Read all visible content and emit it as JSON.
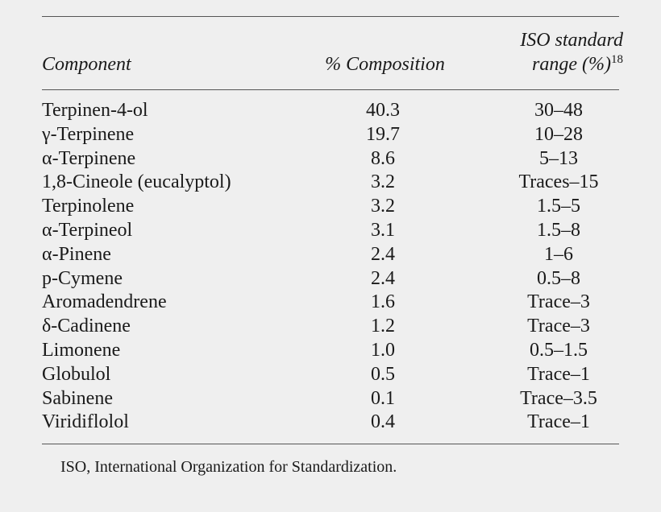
{
  "table": {
    "header": {
      "component": "Component",
      "composition": "% Composition",
      "iso_line1": "ISO standard",
      "iso_line2": "range (%)",
      "iso_ref": "18"
    },
    "rows": [
      [
        "Terpinen-4-ol",
        "40.3",
        "30–48"
      ],
      [
        "γ-Terpinene",
        "19.7",
        "10–28"
      ],
      [
        "α-Terpinene",
        "8.6",
        "5–13"
      ],
      [
        "1,8-Cineole (eucalyptol)",
        "3.2",
        "Traces–15"
      ],
      [
        "Terpinolene",
        "3.2",
        "1.5–5"
      ],
      [
        "α-Terpineol",
        "3.1",
        "1.5–8"
      ],
      [
        "α-Pinene",
        "2.4",
        "1–6"
      ],
      [
        "p-Cymene",
        "2.4",
        "0.5–8"
      ],
      [
        "Aromadendrene",
        "1.6",
        "Trace–3"
      ],
      [
        "δ-Cadinene",
        "1.2",
        "Trace–3"
      ],
      [
        "Limonene",
        "1.0",
        "0.5–1.5"
      ],
      [
        "Globulol",
        "0.5",
        "Trace–1"
      ],
      [
        "Sabinene",
        "0.1",
        "Trace–3.5"
      ],
      [
        "Viridiflolol",
        "0.4",
        "Trace–1"
      ]
    ],
    "footnote": "ISO, International Organization for Standardization."
  }
}
